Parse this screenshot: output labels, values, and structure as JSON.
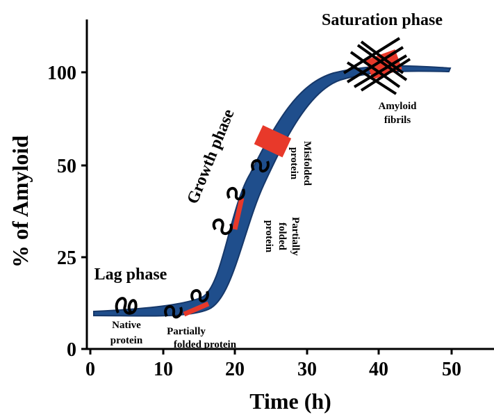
{
  "axes": {
    "x_label": "Time (h)",
    "y_label": "% of Amyloid",
    "x_ticks": [
      "0",
      "10",
      "20",
      "30",
      "40",
      "50"
    ],
    "y_ticks": [
      "0",
      "25",
      "50",
      "100"
    ]
  },
  "phases": {
    "lag": "Lag phase",
    "growth": "Growth phase",
    "saturation": "Saturation phase"
  },
  "labels": {
    "native": [
      "Native",
      "protein"
    ],
    "partially_folded_flat": [
      "Partially",
      "folded protein"
    ],
    "partially_folded_rotated": [
      "Partially",
      "folded",
      "protein"
    ],
    "misfolded": [
      "Misfolded",
      "protein"
    ],
    "fibrils": [
      "Amyloid",
      "fibrils"
    ]
  }
}
